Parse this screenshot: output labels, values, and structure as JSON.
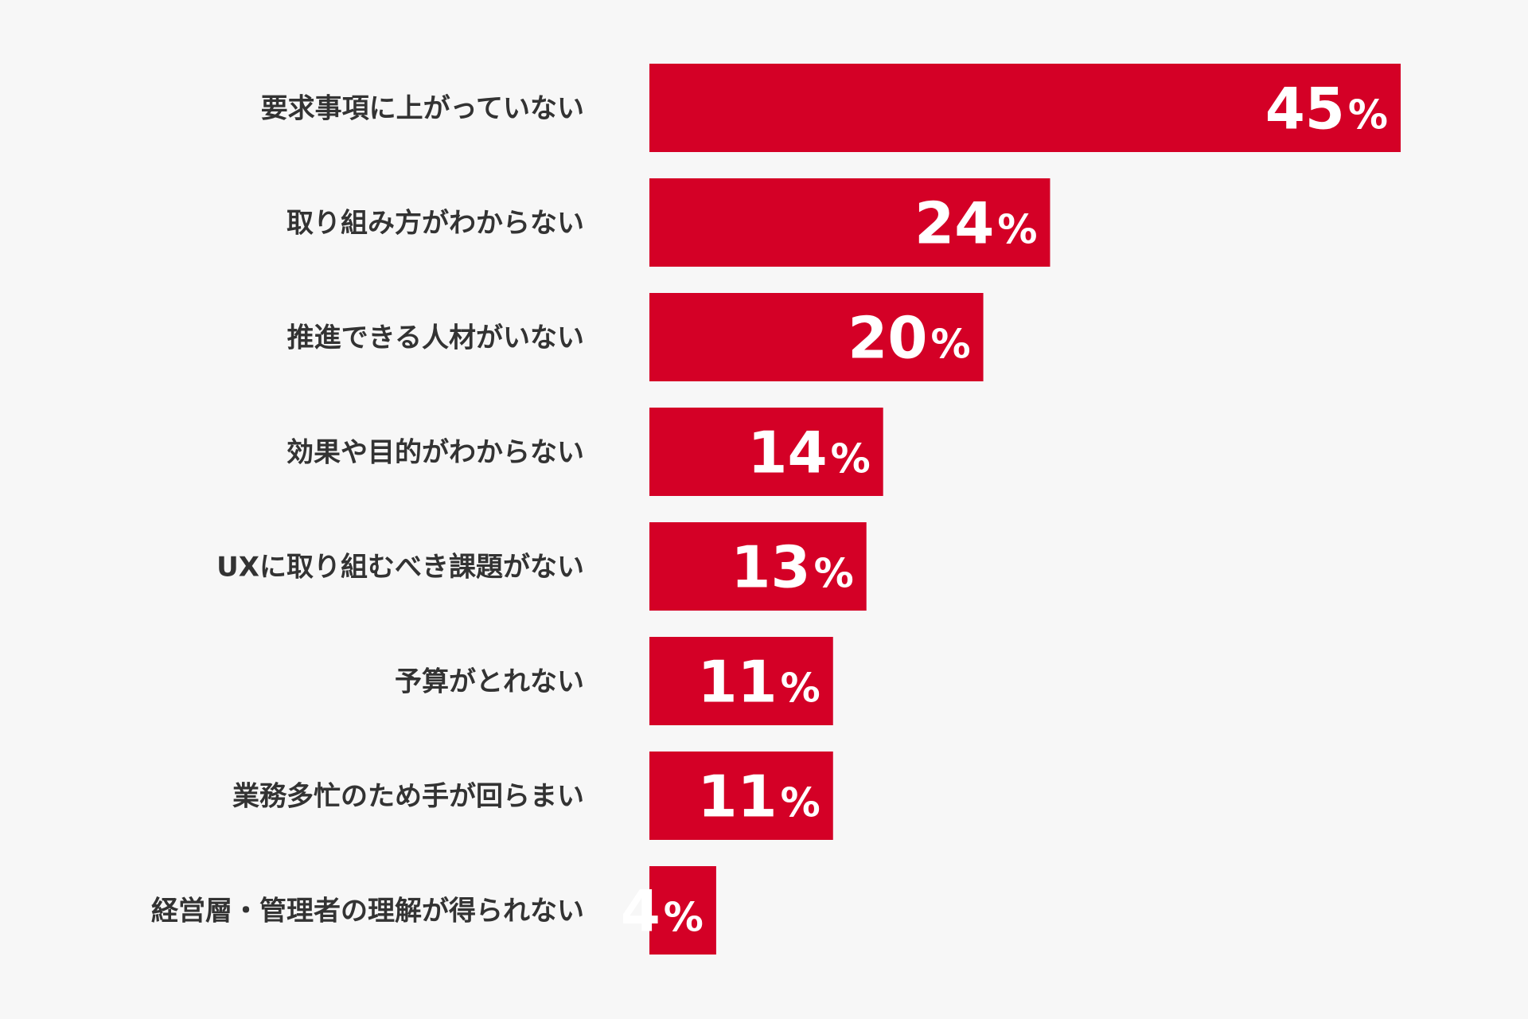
{
  "chart_data": {
    "type": "bar",
    "orientation": "horizontal",
    "categories": [
      "要求事項に上がっていない",
      "取り組み方がわからない",
      "推進できる人材がいない",
      "効果や目的がわからない",
      "UXに取り組むべき課題がない",
      "予算がとれない",
      "業務多忙のため手が回らまい",
      "経営層・管理者の理解が得られない"
    ],
    "values": [
      45,
      24,
      20,
      14,
      13,
      11,
      11,
      4
    ],
    "value_labels": [
      "45",
      "24",
      "20",
      "14",
      "13",
      "11",
      "11",
      "4"
    ],
    "unit": "%",
    "title": "",
    "xlabel": "",
    "ylabel": "",
    "xlim": [
      0,
      45
    ],
    "grid": false,
    "legend": "none",
    "colors": {
      "bar": "#d40026",
      "value_text": "#ffffff",
      "label_text": "#333333",
      "background": "#f7f7f7"
    }
  }
}
